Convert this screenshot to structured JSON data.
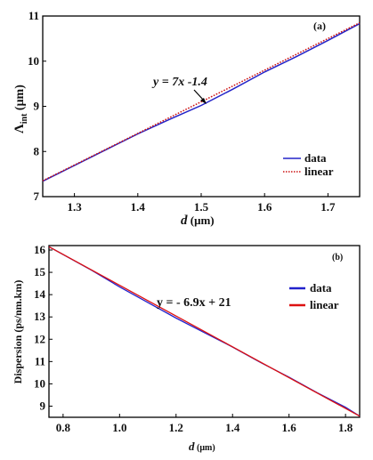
{
  "chart_data": [
    {
      "type": "line",
      "panel_label": "(a)",
      "xlabel": "d (μm)",
      "ylabel": "Λint (μm)",
      "xlim": [
        1.25,
        1.75
      ],
      "ylim": [
        7,
        11
      ],
      "xticks": [
        "1.3",
        "1.4",
        "1.5",
        "1.6",
        "1.7"
      ],
      "yticks": [
        "7",
        "8",
        "9",
        "10",
        "11"
      ],
      "annotation": "y = 7x -1.4",
      "legend_position": "bottom-right",
      "series": [
        {
          "name": "data",
          "style": "solid",
          "color": "#2323c8",
          "x": [
            1.25,
            1.3,
            1.35,
            1.4,
            1.45,
            1.5,
            1.55,
            1.6,
            1.65,
            1.7,
            1.75
          ],
          "y": [
            7.34,
            7.69,
            8.04,
            8.39,
            8.71,
            9.02,
            9.38,
            9.76,
            10.1,
            10.46,
            10.83
          ]
        },
        {
          "name": "linear",
          "style": "dotted",
          "color": "#cc1111",
          "x": [
            1.25,
            1.75
          ],
          "y": [
            7.35,
            10.85
          ]
        }
      ]
    },
    {
      "type": "line",
      "panel_label": "(b)",
      "xlabel": "d (μm)",
      "ylabel": "Dispersion (ps/nm.km)",
      "xlim": [
        0.75,
        1.85
      ],
      "ylim": [
        8.5,
        16.2
      ],
      "xticks": [
        "0.8",
        "1.0",
        "1.2",
        "1.4",
        "1.6",
        "1.8"
      ],
      "yticks": [
        "9",
        "10",
        "11",
        "12",
        "13",
        "14",
        "15",
        "16"
      ],
      "annotation": "y = - 6.9x + 21",
      "legend_position": "top-right",
      "series": [
        {
          "name": "data",
          "style": "solid",
          "color": "#2222cc",
          "x": [
            0.75,
            0.9,
            1.0,
            1.1,
            1.2,
            1.3,
            1.4,
            1.5,
            1.6,
            1.7,
            1.8,
            1.85
          ],
          "y": [
            16.15,
            15.1,
            14.35,
            13.65,
            12.95,
            12.3,
            11.65,
            10.95,
            10.3,
            9.6,
            8.95,
            8.55
          ]
        },
        {
          "name": "linear",
          "style": "solid",
          "color": "#dd1111",
          "x": [
            0.75,
            1.85
          ],
          "y": [
            16.15,
            8.55
          ]
        }
      ]
    }
  ]
}
